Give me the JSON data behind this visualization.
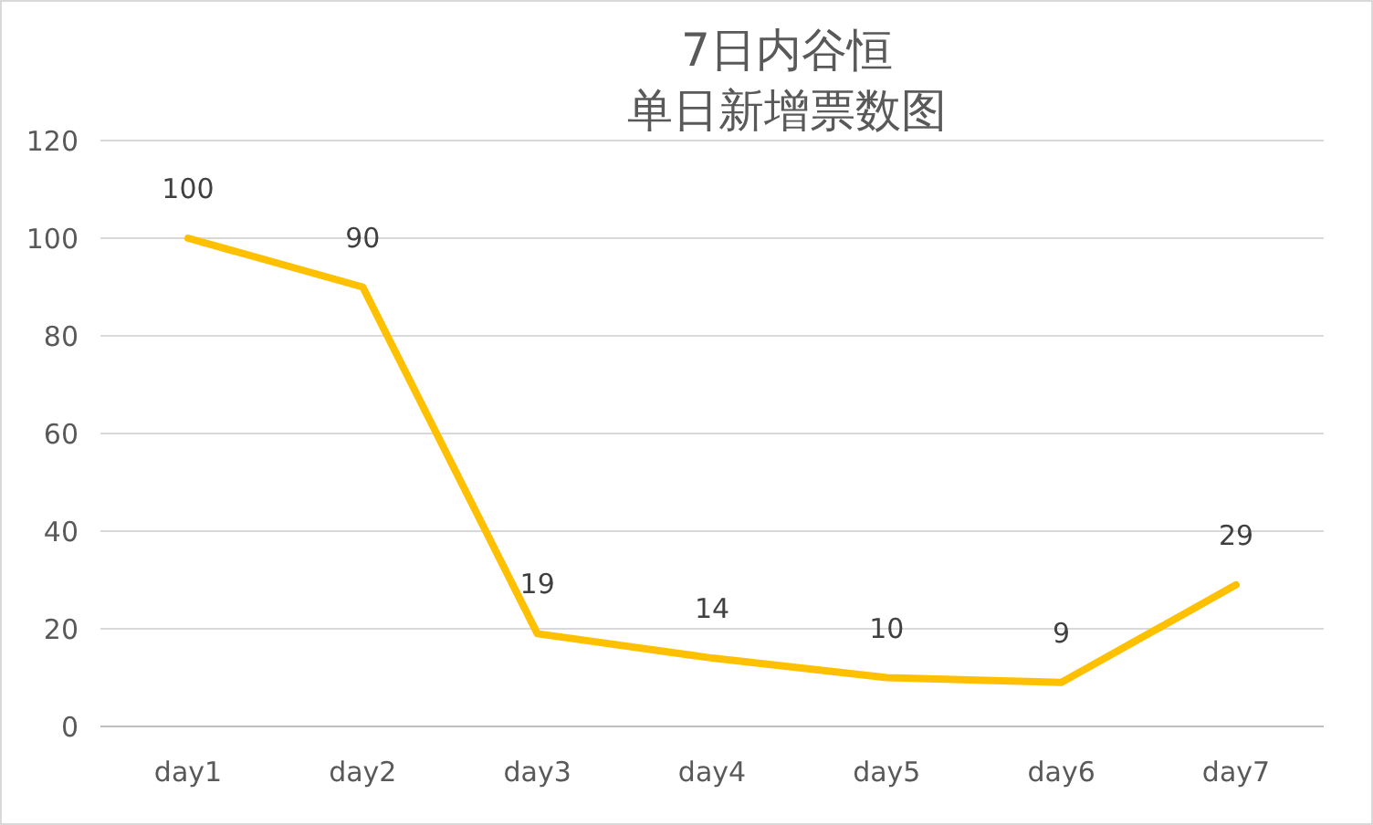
{
  "chart_data": {
    "type": "line",
    "title": "7日内谷恒",
    "subtitle": "单日新增票数图",
    "categories": [
      "day1",
      "day2",
      "day3",
      "day4",
      "day5",
      "day6",
      "day7"
    ],
    "series": [
      {
        "color": "#ffc000",
        "values": [
          100,
          90,
          19,
          14,
          10,
          9,
          29
        ]
      }
    ],
    "ylim": [
      0,
      120
    ],
    "yticks": [
      0,
      20,
      40,
      60,
      80,
      100,
      120
    ],
    "grid": "y",
    "data_labels": true,
    "marker": "none",
    "line_style": "solid"
  }
}
